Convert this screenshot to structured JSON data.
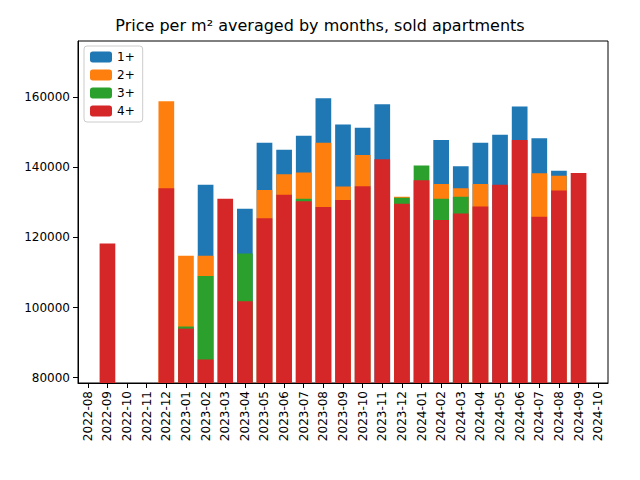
{
  "chart_data": {
    "type": "bar",
    "title": "Price per m² averaged by months, sold apartments",
    "categories": [
      "2022-08",
      "2022-09",
      "2022-10",
      "2022-11",
      "2022-12",
      "2023-01",
      "2023-02",
      "2023-03",
      "2023-04",
      "2023-05",
      "2023-06",
      "2023-07",
      "2023-08",
      "2023-09",
      "2023-10",
      "2023-11",
      "2023-12",
      "2024-01",
      "2024-02",
      "2024-03",
      "2024-04",
      "2024-05",
      "2024-06",
      "2024-07",
      "2024-08",
      "2024-09",
      "2024-10"
    ],
    "series": [
      {
        "name": "1+",
        "color": "#1f77b4",
        "values": [
          null,
          null,
          null,
          null,
          null,
          null,
          135000,
          null,
          128200,
          147000,
          145000,
          149000,
          159700,
          152200,
          151300,
          158000,
          null,
          null,
          147800,
          140300,
          147000,
          149300,
          157300,
          148300,
          139000,
          null,
          null
        ]
      },
      {
        "name": "2+",
        "color": "#ff7f0e",
        "values": [
          null,
          null,
          null,
          null,
          158800,
          114800,
          114800,
          null,
          null,
          133500,
          138000,
          138500,
          147000,
          134500,
          143500,
          null,
          131600,
          null,
          135200,
          134000,
          135200,
          null,
          null,
          138300,
          137600,
          null,
          null
        ]
      },
      {
        "name": "3+",
        "color": "#2ca02c",
        "values": [
          null,
          null,
          null,
          null,
          null,
          94600,
          109000,
          null,
          115400,
          null,
          null,
          131000,
          null,
          null,
          null,
          null,
          131300,
          140500,
          131000,
          131600,
          null,
          null,
          null,
          null,
          null,
          null,
          null
        ]
      },
      {
        "name": "4+",
        "color": "#d62728",
        "values": [
          null,
          118300,
          null,
          null,
          134000,
          94000,
          85200,
          131000,
          101800,
          125500,
          132200,
          130300,
          128700,
          130700,
          134600,
          142300,
          129600,
          136300,
          125000,
          126800,
          128800,
          135000,
          147800,
          125900,
          133400,
          138400,
          null
        ]
      }
    ],
    "ylim": [
      78500,
      176000
    ],
    "yticks": [
      80000,
      100000,
      120000,
      140000,
      160000
    ],
    "stacked": false,
    "grid": false,
    "legend": "upper left"
  }
}
